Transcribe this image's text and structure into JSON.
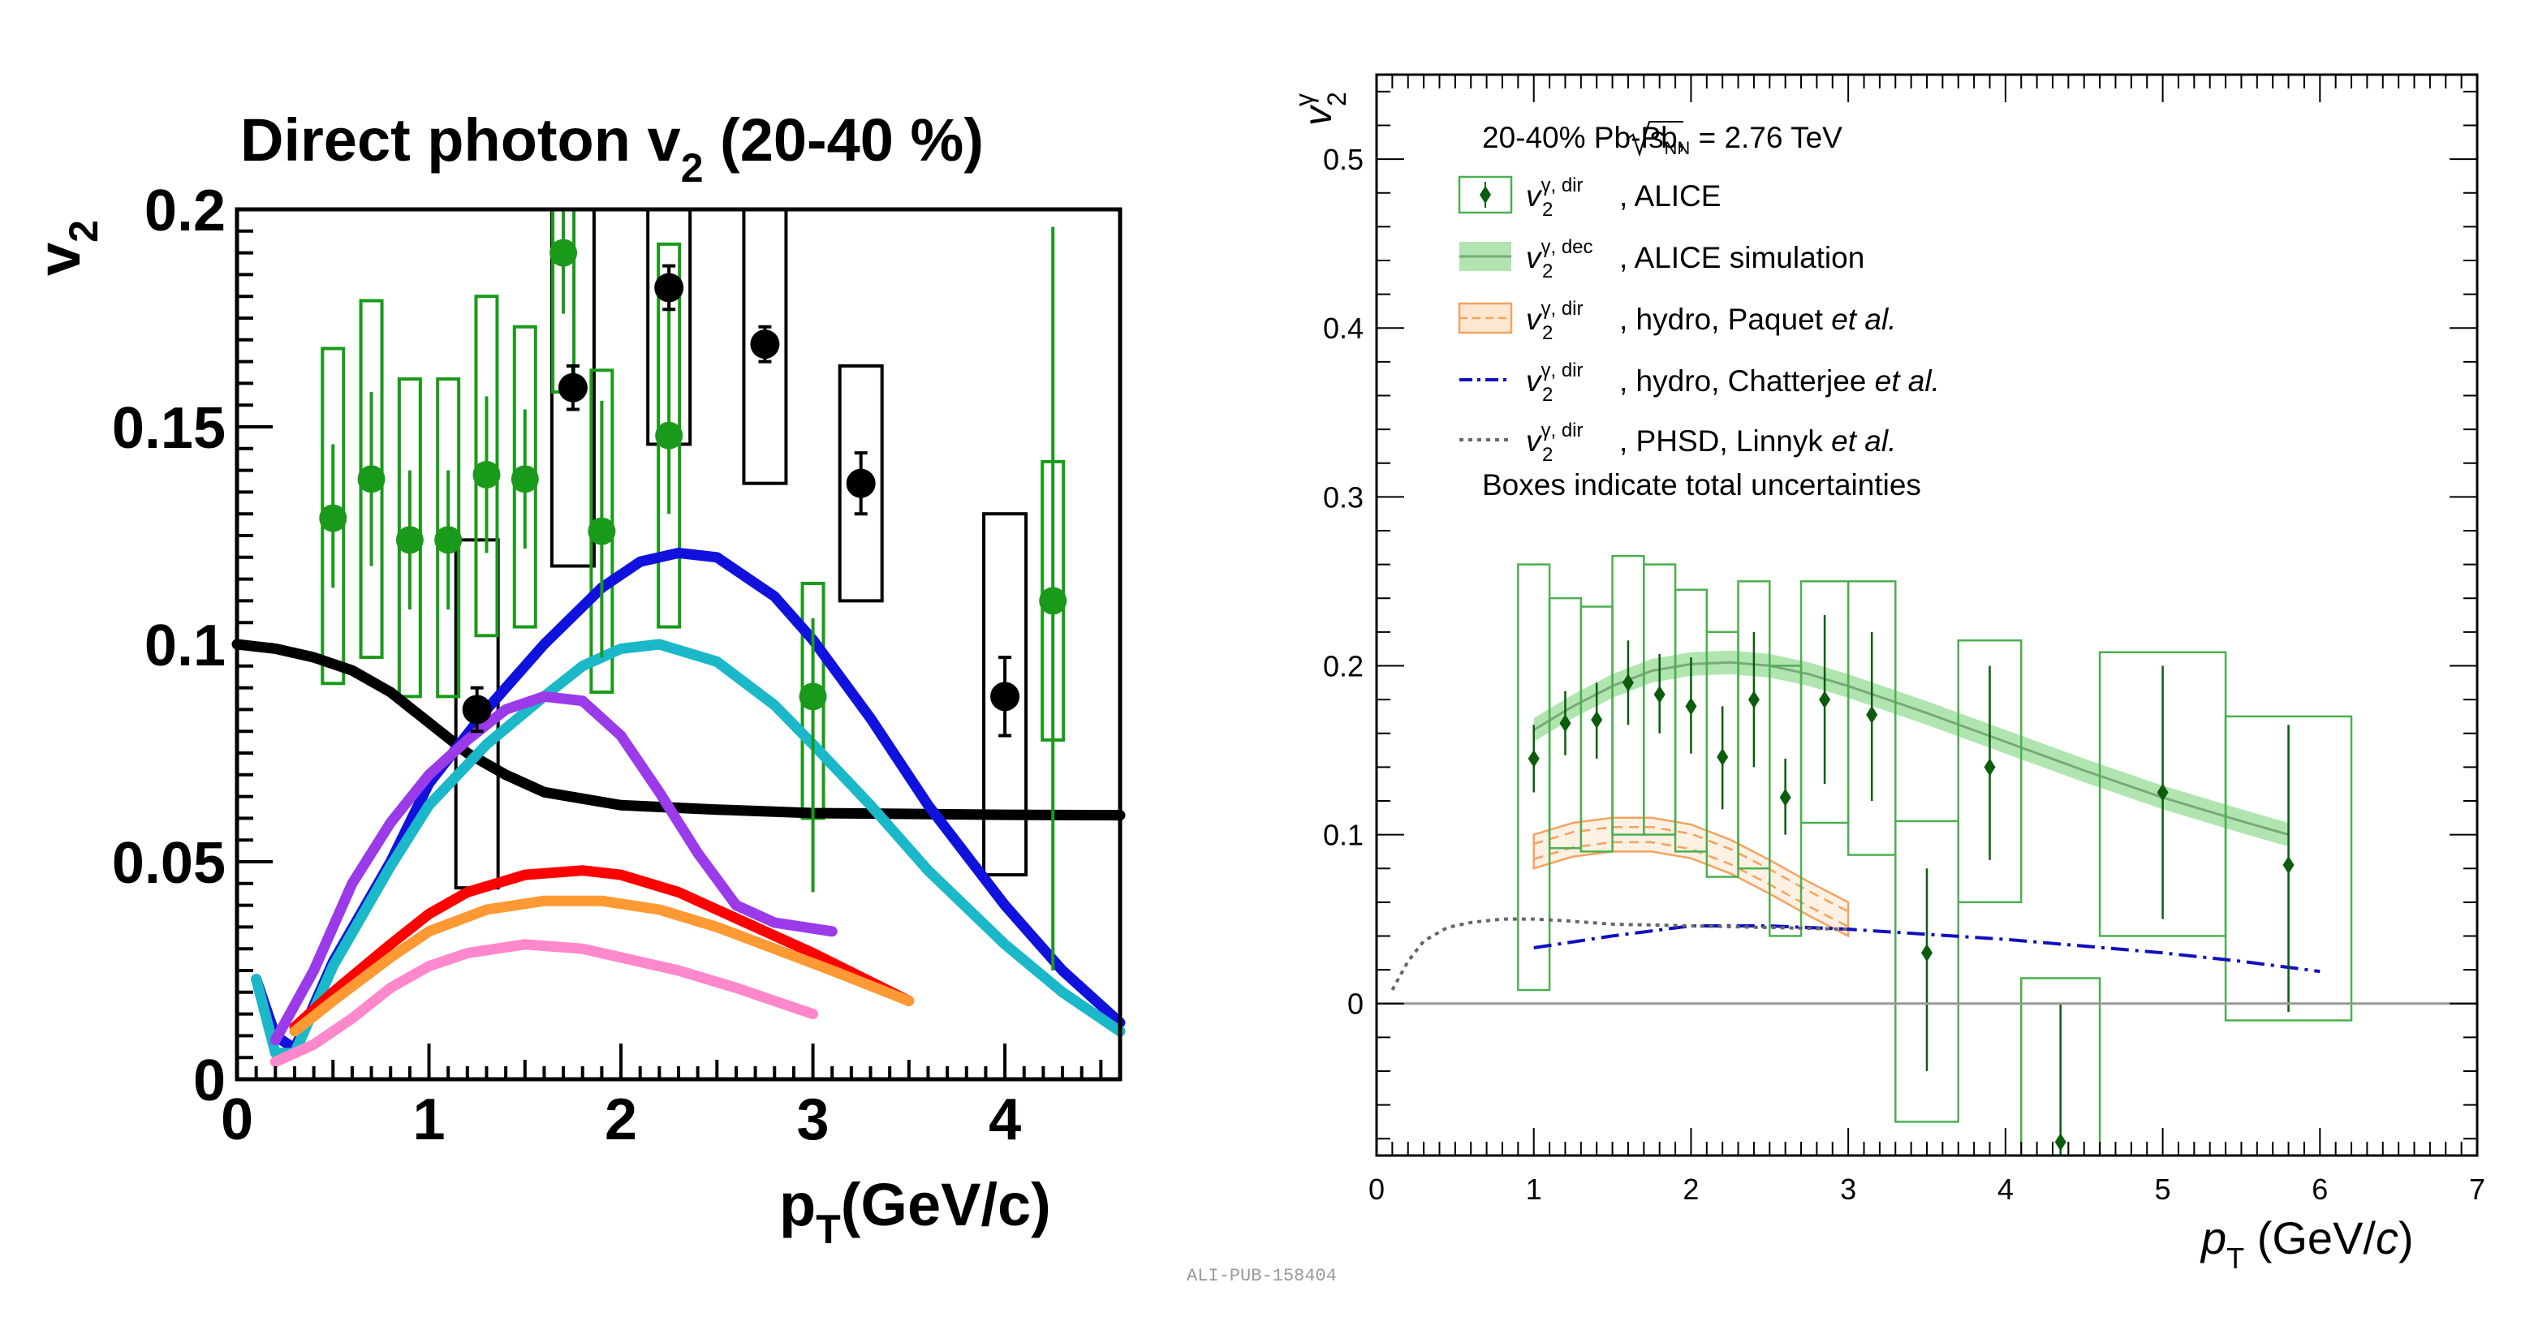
{
  "chart_data": [
    {
      "type": "scatter",
      "title": "Direct photon v",
      "title_sub": "2",
      "title_tail": " (20-40 %)",
      "ylabel": "v",
      "ylabel_sub": "2",
      "xlabel": "p",
      "xlabel_sub": "T",
      "xlabel_tail": "(GeV/c)",
      "xlim": [
        0,
        4.6
      ],
      "ylim": [
        0,
        0.2
      ],
      "xticks": [
        "0",
        "1",
        "2",
        "3",
        "4"
      ],
      "yticks": [
        "0",
        "0.05",
        "0.1",
        "0.15",
        "0.2"
      ],
      "data_series": [
        {
          "name": "green data",
          "color": "#1a9a1a",
          "points": [
            {
              "x": 0.5,
              "y": 0.129,
              "stat": [
                0.113,
                0.146
              ],
              "box": [
                0.091,
                0.168
              ]
            },
            {
              "x": 0.7,
              "y": 0.138,
              "stat": [
                0.118,
                0.158
              ],
              "box": [
                0.097,
                0.179
              ]
            },
            {
              "x": 0.9,
              "y": 0.124,
              "stat": [
                0.108,
                0.14
              ],
              "box": [
                0.088,
                0.161
              ]
            },
            {
              "x": 1.1,
              "y": 0.124,
              "stat": [
                0.108,
                0.14
              ],
              "box": [
                0.088,
                0.161
              ]
            },
            {
              "x": 1.3,
              "y": 0.139,
              "stat": [
                0.121,
                0.157
              ],
              "box": [
                0.102,
                0.18
              ]
            },
            {
              "x": 1.5,
              "y": 0.138,
              "stat": [
                0.122,
                0.154
              ],
              "box": [
                0.104,
                0.173
              ]
            },
            {
              "x": 1.7,
              "y": 0.19,
              "stat": [
                0.176,
                0.2
              ],
              "box": [
                0.158,
                0.2
              ]
            },
            {
              "x": 1.9,
              "y": 0.126,
              "stat": [
                0.097,
                0.156
              ],
              "box": [
                0.089,
                0.163
              ]
            },
            {
              "x": 2.25,
              "y": 0.148,
              "stat": [
                0.13,
                0.186
              ],
              "box": [
                0.104,
                0.192
              ]
            },
            {
              "x": 3.0,
              "y": 0.088,
              "stat": [
                0.043,
                0.106
              ],
              "box": [
                0.06,
                0.114
              ]
            },
            {
              "x": 4.25,
              "y": 0.11,
              "stat": [
                0.025,
                0.196
              ],
              "box": [
                0.078,
                0.142
              ]
            }
          ]
        },
        {
          "name": "black data",
          "color": "#000000",
          "points": [
            {
              "x": 1.25,
              "y": 0.085,
              "stat": [
                0.08,
                0.09
              ],
              "box": [
                0.044,
                0.124
              ]
            },
            {
              "x": 1.75,
              "y": 0.159,
              "stat": [
                0.154,
                0.164
              ],
              "box": [
                0.118,
                0.2
              ]
            },
            {
              "x": 2.25,
              "y": 0.182,
              "stat": [
                0.177,
                0.187
              ],
              "box": [
                0.146,
                0.2
              ]
            },
            {
              "x": 2.75,
              "y": 0.169,
              "stat": [
                0.165,
                0.173
              ],
              "box": [
                0.137,
                0.2
              ]
            },
            {
              "x": 3.25,
              "y": 0.137,
              "stat": [
                0.13,
                0.144
              ],
              "box": [
                0.11,
                0.164
              ]
            },
            {
              "x": 4.0,
              "y": 0.088,
              "stat": [
                0.079,
                0.097
              ],
              "box": [
                0.047,
                0.13
              ]
            }
          ]
        }
      ],
      "curves": [
        {
          "name": "black",
          "color": "#000000",
          "x": [
            0,
            0.2,
            0.4,
            0.6,
            0.8,
            1.0,
            1.2,
            1.4,
            1.6,
            2.0,
            2.5,
            3.0,
            3.5,
            4.0,
            4.6
          ],
          "y": [
            0.1,
            0.099,
            0.097,
            0.094,
            0.089,
            0.082,
            0.075,
            0.07,
            0.066,
            0.063,
            0.062,
            0.0612,
            0.061,
            0.0608,
            0.0607
          ]
        },
        {
          "name": "blue",
          "color": "#1111dd",
          "x": [
            0.1,
            0.2,
            0.3,
            0.5,
            0.8,
            1.0,
            1.3,
            1.6,
            1.9,
            2.1,
            2.3,
            2.5,
            2.8,
            3.0,
            3.3,
            3.6,
            4.0,
            4.3,
            4.6
          ],
          "y": [
            0.023,
            0.01,
            0.007,
            0.027,
            0.05,
            0.068,
            0.085,
            0.1,
            0.113,
            0.119,
            0.121,
            0.12,
            0.111,
            0.101,
            0.083,
            0.063,
            0.04,
            0.025,
            0.013
          ]
        },
        {
          "name": "cyan",
          "color": "#1ab8c8",
          "x": [
            0.1,
            0.2,
            0.3,
            0.5,
            0.8,
            1.0,
            1.3,
            1.6,
            1.8,
            2.0,
            2.2,
            2.5,
            2.8,
            3.0,
            3.3,
            3.6,
            4.0,
            4.3,
            4.6
          ],
          "y": [
            0.023,
            0.006,
            0.006,
            0.026,
            0.049,
            0.063,
            0.077,
            0.088,
            0.095,
            0.099,
            0.1,
            0.096,
            0.086,
            0.077,
            0.063,
            0.048,
            0.031,
            0.02,
            0.011
          ]
        },
        {
          "name": "purple",
          "color": "#9a3ae8",
          "x": [
            0.2,
            0.4,
            0.6,
            0.8,
            1.0,
            1.2,
            1.4,
            1.6,
            1.8,
            2.0,
            2.2,
            2.4,
            2.6,
            2.8,
            3.1
          ],
          "y": [
            0.009,
            0.025,
            0.045,
            0.059,
            0.07,
            0.078,
            0.085,
            0.088,
            0.087,
            0.079,
            0.066,
            0.052,
            0.04,
            0.036,
            0.034
          ]
        },
        {
          "name": "red",
          "color": "#ff0000",
          "x": [
            0.3,
            0.5,
            0.8,
            1.0,
            1.2,
            1.5,
            1.8,
            2.0,
            2.3,
            2.6,
            3.0,
            3.5
          ],
          "y": [
            0.012,
            0.02,
            0.031,
            0.038,
            0.043,
            0.047,
            0.048,
            0.047,
            0.043,
            0.037,
            0.029,
            0.018
          ]
        },
        {
          "name": "orange",
          "color": "#ff9933",
          "x": [
            0.3,
            0.5,
            0.8,
            1.0,
            1.3,
            1.6,
            1.9,
            2.2,
            2.5,
            2.8,
            3.1,
            3.5
          ],
          "y": [
            0.011,
            0.018,
            0.028,
            0.034,
            0.039,
            0.041,
            0.041,
            0.039,
            0.035,
            0.03,
            0.025,
            0.018
          ]
        },
        {
          "name": "pink",
          "color": "#ff88cc",
          "x": [
            0.2,
            0.4,
            0.6,
            0.8,
            1.0,
            1.2,
            1.5,
            1.8,
            2.0,
            2.3,
            2.6,
            3.0
          ],
          "y": [
            0.004,
            0.008,
            0.014,
            0.021,
            0.026,
            0.029,
            0.031,
            0.03,
            0.028,
            0.025,
            0.021,
            0.015
          ]
        }
      ]
    },
    {
      "type": "scatter",
      "ylabel": "v",
      "ylabel_sup": "γ",
      "ylabel_sub": "2",
      "xlabel": "p",
      "xlabel_sub": "T",
      "xlabel_tail": " (GeV/",
      "xlabel_italic": "c",
      "xlabel_close": ")",
      "xlim": [
        0,
        7
      ],
      "ylim": [
        -0.09,
        0.55
      ],
      "xticks": [
        "0",
        "1",
        "2",
        "3",
        "4",
        "5",
        "6",
        "7"
      ],
      "yticks": [
        "0",
        "0.1",
        "0.2",
        "0.3",
        "0.4",
        "0.5"
      ],
      "watermark": "ALI-PUB-158404",
      "legend": {
        "header": "20-40% Pb-Pb, ",
        "header_energy": " = 2.76 TeV",
        "entries": [
          {
            "sup": "γ, dir",
            "text": ", ALICE",
            "italic": "",
            "style": "marker"
          },
          {
            "sup": "γ, dec",
            "text": ", ALICE simulation",
            "italic": "",
            "style": "band-green"
          },
          {
            "sup": "γ, dir",
            "text": ", hydro, Paquet ",
            "italic": "et al.",
            "style": "band-orange"
          },
          {
            "sup": "γ, dir",
            "text": ", hydro, Chatterjee ",
            "italic": "et al.",
            "style": "dashdot-blue"
          },
          {
            "sup": "γ, dir",
            "text": ", PHSD, Linnyk ",
            "italic": "et al.",
            "style": "dotted-gray"
          }
        ],
        "note": "Boxes indicate total uncertainties"
      },
      "data": {
        "name": "v2 gamma dir ALICE",
        "color": "#0b5c0b",
        "points": [
          {
            "x": 1.0,
            "y": 0.145,
            "stat": [
              0.125,
              0.165
            ],
            "box": [
              0.008,
              0.26
            ],
            "hw": 0.1
          },
          {
            "x": 1.2,
            "y": 0.166,
            "stat": [
              0.147,
              0.185
            ],
            "box": [
              0.092,
              0.24
            ],
            "hw": 0.1
          },
          {
            "x": 1.4,
            "y": 0.168,
            "stat": [
              0.145,
              0.19
            ],
            "box": [
              0.09,
              0.235
            ],
            "hw": 0.1
          },
          {
            "x": 1.6,
            "y": 0.19,
            "stat": [
              0.165,
              0.215
            ],
            "box": [
              0.1,
              0.265
            ],
            "hw": 0.1
          },
          {
            "x": 1.8,
            "y": 0.183,
            "stat": [
              0.16,
              0.207
            ],
            "box": [
              0.1,
              0.26
            ],
            "hw": 0.1
          },
          {
            "x": 2.0,
            "y": 0.176,
            "stat": [
              0.148,
              0.205
            ],
            "box": [
              0.09,
              0.245
            ],
            "hw": 0.1
          },
          {
            "x": 2.2,
            "y": 0.146,
            "stat": [
              0.115,
              0.176
            ],
            "box": [
              0.075,
              0.22
            ],
            "hw": 0.1
          },
          {
            "x": 2.4,
            "y": 0.18,
            "stat": [
              0.14,
              0.22
            ],
            "box": [
              0.08,
              0.25
            ],
            "hw": 0.1
          },
          {
            "x": 2.6,
            "y": 0.122,
            "stat": [
              0.1,
              0.145
            ],
            "box": [
              0.04,
              0.2
            ],
            "hw": 0.1
          },
          {
            "x": 2.85,
            "y": 0.18,
            "stat": [
              0.13,
              0.23
            ],
            "box": [
              0.107,
              0.25
            ],
            "hw": 0.15
          },
          {
            "x": 3.15,
            "y": 0.171,
            "stat": [
              0.12,
              0.22
            ],
            "box": [
              0.088,
              0.25
            ],
            "hw": 0.15
          },
          {
            "x": 3.5,
            "y": 0.03,
            "stat": [
              -0.04,
              0.08
            ],
            "box": [
              -0.07,
              0.108
            ],
            "hw": 0.2
          },
          {
            "x": 3.9,
            "y": 0.14,
            "stat": [
              0.085,
              0.2
            ],
            "box": [
              0.06,
              0.215
            ],
            "hw": 0.2
          },
          {
            "x": 4.35,
            "y": -0.082,
            "stat": [
              -0.09,
              0.0
            ],
            "box": [
              -0.09,
              0.015
            ],
            "hw": 0.25
          },
          {
            "x": 5.0,
            "y": 0.125,
            "stat": [
              0.05,
              0.2
            ],
            "box": [
              0.04,
              0.208
            ],
            "hw": 0.4
          },
          {
            "x": 5.8,
            "y": 0.082,
            "stat": [
              -0.005,
              0.165
            ],
            "box": [
              -0.01,
              0.17
            ],
            "hw": 0.4
          }
        ]
      },
      "bands": [
        {
          "name": "ALICE simulation",
          "color": "#6fd06f",
          "x": [
            1.0,
            1.25,
            1.5,
            1.75,
            2.0,
            2.25,
            2.5,
            2.75,
            3.0,
            3.5,
            4.0,
            4.5,
            5.0,
            5.5,
            5.8
          ],
          "center": [
            0.162,
            0.176,
            0.188,
            0.197,
            0.201,
            0.202,
            0.2,
            0.195,
            0.188,
            0.172,
            0.155,
            0.138,
            0.122,
            0.108,
            0.1
          ],
          "half_width": 0.007
        },
        {
          "name": "hydro Paquet",
          "color": "#f4a261",
          "x": [
            1.0,
            1.25,
            1.5,
            1.75,
            2.0,
            2.25,
            2.5,
            2.75,
            3.0
          ],
          "center": [
            0.09,
            0.097,
            0.1,
            0.1,
            0.096,
            0.087,
            0.075,
            0.062,
            0.05
          ],
          "half_width": 0.01
        }
      ],
      "curves": [
        {
          "name": "Chatterjee",
          "color": "#1010c0",
          "dash": "22,8,4,8",
          "x": [
            1.0,
            1.5,
            2.0,
            2.5,
            3.0,
            3.5,
            4.0,
            4.5,
            5.0,
            5.5,
            6.0
          ],
          "y": [
            0.033,
            0.04,
            0.046,
            0.046,
            0.044,
            0.041,
            0.038,
            0.034,
            0.03,
            0.025,
            0.019
          ]
        },
        {
          "name": "PHSD Linnyk",
          "color": "#666666",
          "dash": "5,6",
          "x": [
            0.1,
            0.2,
            0.3,
            0.45,
            0.6,
            0.8,
            1.0,
            1.2,
            1.5,
            2.0,
            2.5,
            3.0
          ],
          "y": [
            0.008,
            0.025,
            0.037,
            0.045,
            0.048,
            0.05,
            0.05,
            0.049,
            0.047,
            0.046,
            0.045,
            0.044
          ]
        }
      ]
    }
  ]
}
